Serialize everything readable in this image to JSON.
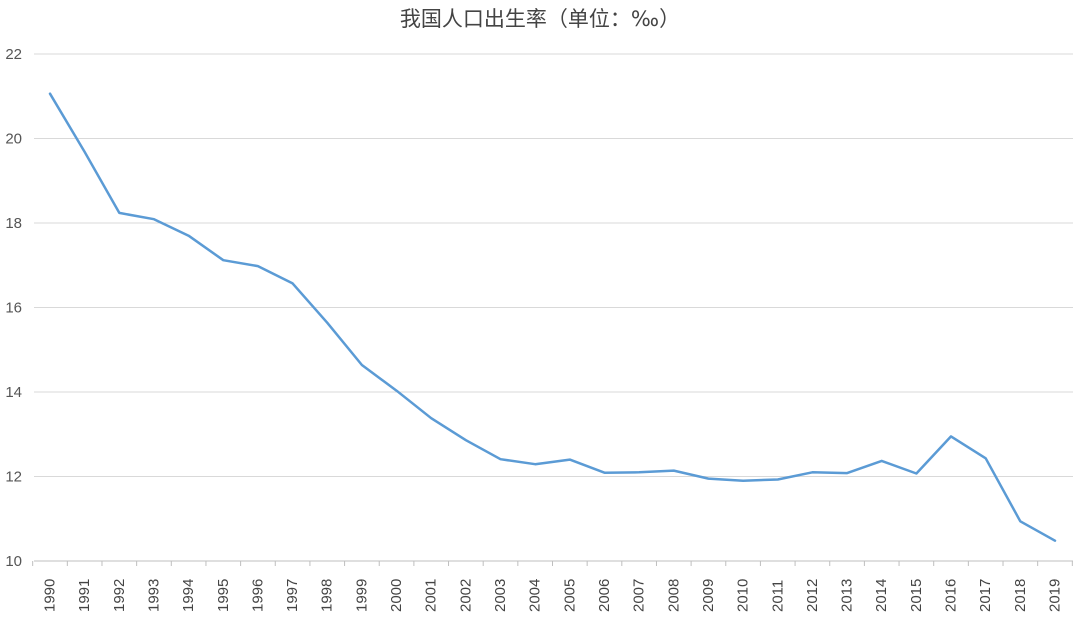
{
  "chart_data": {
    "type": "line",
    "title": "我国人口出生率（单位：‰）",
    "xlabel": "",
    "ylabel": "",
    "ylim": [
      10,
      22
    ],
    "yticks": [
      10,
      12,
      14,
      16,
      18,
      20,
      22
    ],
    "grid": true,
    "legend": "none",
    "categories": [
      "1990",
      "1991",
      "1992",
      "1993",
      "1994",
      "1995",
      "1996",
      "1997",
      "1998",
      "1999",
      "2000",
      "2001",
      "2002",
      "2003",
      "2004",
      "2005",
      "2006",
      "2007",
      "2008",
      "2009",
      "2010",
      "2011",
      "2012",
      "2013",
      "2014",
      "2015",
      "2016",
      "2017",
      "2018",
      "2019"
    ],
    "series": [
      {
        "color": "#5b9bd5",
        "values": [
          21.06,
          19.68,
          18.24,
          18.09,
          17.7,
          17.12,
          16.98,
          16.57,
          15.64,
          14.64,
          14.03,
          13.38,
          12.86,
          12.41,
          12.29,
          12.4,
          12.09,
          12.1,
          12.14,
          11.95,
          11.9,
          11.93,
          12.1,
          12.08,
          12.37,
          12.07,
          12.95,
          12.43,
          10.94,
          10.48
        ]
      }
    ]
  }
}
